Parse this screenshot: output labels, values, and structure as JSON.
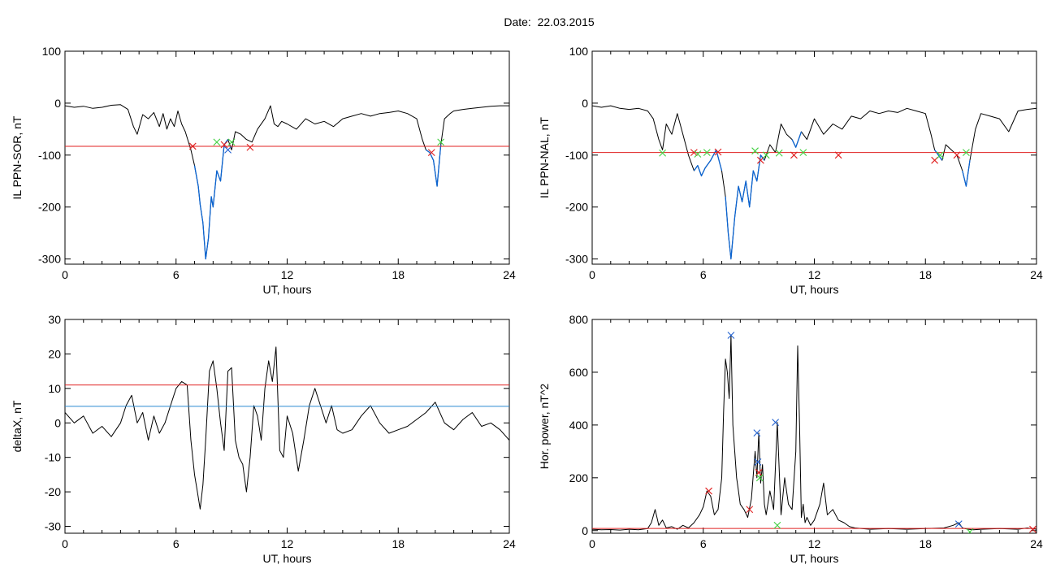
{
  "header": {
    "title": "Date:  22.03.2015"
  },
  "colors": {
    "trace": "#000000",
    "highlight": "#0a64d2",
    "threshold_red": "#e02020",
    "threshold_blue": "#2a8ad0",
    "marker_red": "#e02020",
    "marker_green": "#40d040",
    "marker_blue": "#2060d0"
  },
  "chart_data": [
    {
      "type": "line",
      "xlabel": "UT, hours",
      "ylabel": "IL PPN-SOR, nT",
      "xlim": [
        0,
        24
      ],
      "ylim": [
        -310,
        100
      ],
      "xticks": [
        0,
        6,
        12,
        18,
        24
      ],
      "yticks": [
        100,
        0,
        -100,
        -200,
        -300
      ],
      "series": [
        {
          "x": [
            0,
            0.5,
            1,
            1.5,
            2,
            2.5,
            3,
            3.4,
            3.7,
            3.9,
            4.2,
            4.5,
            4.8,
            5.1,
            5.3,
            5.5,
            5.7,
            5.9,
            6.1,
            6.3,
            6.5,
            6.8,
            7.0,
            7.2,
            7.3,
            7.45,
            7.6,
            7.75,
            7.9,
            8.0,
            8.2,
            8.4,
            8.6,
            8.8,
            9.0,
            9.2,
            9.5,
            9.8,
            10.1,
            10.4,
            10.8,
            11.1,
            11.3,
            11.5,
            11.7,
            12.0,
            12.5,
            13,
            13.5,
            14,
            14.5,
            15,
            15.5,
            16,
            16.5,
            17,
            17.5,
            18,
            18.5,
            19,
            19.3,
            19.5,
            19.7,
            19.9,
            20.1,
            20.3,
            20.5,
            20.8,
            21,
            21.5,
            22,
            22.5,
            23,
            23.5,
            24
          ],
          "y": [
            -5,
            -8,
            -6,
            -10,
            -8,
            -4,
            -3,
            -12,
            -45,
            -60,
            -22,
            -30,
            -18,
            -45,
            -20,
            -50,
            -30,
            -45,
            -15,
            -40,
            -55,
            -90,
            -120,
            -160,
            -195,
            -230,
            -300,
            -260,
            -180,
            -200,
            -130,
            -150,
            -80,
            -70,
            -90,
            -55,
            -60,
            -70,
            -75,
            -50,
            -30,
            -5,
            -40,
            -45,
            -35,
            -40,
            -50,
            -30,
            -40,
            -35,
            -45,
            -30,
            -25,
            -20,
            -25,
            -20,
            -18,
            -15,
            -20,
            -30,
            -70,
            -90,
            -95,
            -110,
            -160,
            -80,
            -30,
            -20,
            -15,
            -12,
            -10,
            -8,
            -6,
            -5,
            -5
          ]
        }
      ],
      "highlight_intervals": [
        [
          6.9,
          8.9
        ],
        [
          19.5,
          20.4
        ]
      ],
      "thresholds": [
        {
          "y": -83,
          "color": "#e02020"
        }
      ],
      "markers": [
        {
          "x": 6.9,
          "y": -83,
          "color": "#e02020"
        },
        {
          "x": 8.2,
          "y": -75,
          "color": "#40d040"
        },
        {
          "x": 8.6,
          "y": -80,
          "color": "#e02020"
        },
        {
          "x": 8.8,
          "y": -90,
          "color": "#2060d0"
        },
        {
          "x": 9.0,
          "y": -75,
          "color": "#40d040"
        },
        {
          "x": 10.0,
          "y": -85,
          "color": "#e02020"
        },
        {
          "x": 19.8,
          "y": -95,
          "color": "#e02020"
        },
        {
          "x": 20.3,
          "y": -75,
          "color": "#40d040"
        }
      ]
    },
    {
      "type": "line",
      "xlabel": "UT, hours",
      "ylabel": "IL PPN-NAL, nT",
      "xlim": [
        0,
        24
      ],
      "ylim": [
        -310,
        100
      ],
      "xticks": [
        0,
        6,
        12,
        18,
        24
      ],
      "yticks": [
        100,
        0,
        -100,
        -200,
        -300
      ],
      "series": [
        {
          "x": [
            0,
            0.5,
            1,
            1.5,
            2,
            2.5,
            3,
            3.3,
            3.6,
            3.8,
            4.0,
            4.3,
            4.6,
            4.9,
            5.2,
            5.5,
            5.7,
            5.9,
            6.1,
            6.4,
            6.7,
            7.0,
            7.2,
            7.35,
            7.5,
            7.7,
            7.9,
            8.1,
            8.3,
            8.5,
            8.7,
            8.9,
            9.1,
            9.3,
            9.6,
            9.9,
            10.2,
            10.5,
            10.8,
            11.0,
            11.3,
            11.6,
            12.0,
            12.5,
            13,
            13.5,
            14,
            14.5,
            15,
            15.5,
            16,
            16.5,
            17,
            17.5,
            18,
            18.3,
            18.5,
            18.7,
            18.9,
            19.1,
            19.4,
            19.7,
            20.0,
            20.2,
            20.4,
            20.7,
            21,
            21.5,
            22,
            22.5,
            23,
            23.5,
            24
          ],
          "y": [
            -5,
            -8,
            -5,
            -10,
            -12,
            -10,
            -15,
            -30,
            -70,
            -90,
            -40,
            -60,
            -20,
            -60,
            -100,
            -130,
            -120,
            -140,
            -125,
            -110,
            -90,
            -130,
            -180,
            -250,
            -300,
            -220,
            -160,
            -190,
            -150,
            -200,
            -130,
            -150,
            -100,
            -110,
            -80,
            -95,
            -40,
            -60,
            -70,
            -85,
            -55,
            -70,
            -30,
            -60,
            -40,
            -50,
            -25,
            -30,
            -15,
            -20,
            -15,
            -18,
            -10,
            -15,
            -20,
            -60,
            -90,
            -100,
            -110,
            -80,
            -90,
            -100,
            -130,
            -160,
            -110,
            -50,
            -20,
            -25,
            -30,
            -55,
            -15,
            -12,
            -10
          ]
        }
      ],
      "highlight_intervals": [
        [
          5.5,
          7.0
        ],
        [
          7.2,
          9.4
        ],
        [
          9.7,
          10.0
        ],
        [
          10.8,
          11.3
        ],
        [
          18.5,
          19.0
        ],
        [
          19.8,
          20.4
        ]
      ],
      "thresholds": [
        {
          "y": -95,
          "color": "#e02020"
        }
      ],
      "markers": [
        {
          "x": 3.8,
          "y": -96,
          "color": "#40d040"
        },
        {
          "x": 5.5,
          "y": -95,
          "color": "#e02020"
        },
        {
          "x": 5.7,
          "y": -98,
          "color": "#40d040"
        },
        {
          "x": 6.2,
          "y": -95,
          "color": "#40d040"
        },
        {
          "x": 6.8,
          "y": -94,
          "color": "#e02020"
        },
        {
          "x": 8.8,
          "y": -92,
          "color": "#40d040"
        },
        {
          "x": 9.1,
          "y": -110,
          "color": "#e02020"
        },
        {
          "x": 9.4,
          "y": -100,
          "color": "#40d040"
        },
        {
          "x": 10.1,
          "y": -96,
          "color": "#40d040"
        },
        {
          "x": 10.9,
          "y": -100,
          "color": "#e02020"
        },
        {
          "x": 11.4,
          "y": -95,
          "color": "#40d040"
        },
        {
          "x": 13.3,
          "y": -100,
          "color": "#e02020"
        },
        {
          "x": 18.5,
          "y": -110,
          "color": "#e02020"
        },
        {
          "x": 18.8,
          "y": -100,
          "color": "#40d040"
        },
        {
          "x": 19.7,
          "y": -100,
          "color": "#e02020"
        },
        {
          "x": 20.2,
          "y": -95,
          "color": "#40d040"
        }
      ]
    },
    {
      "type": "line",
      "xlabel": "UT, hours",
      "ylabel": "deltaX, nT",
      "xlim": [
        0,
        24
      ],
      "ylim": [
        -32,
        30
      ],
      "xticks": [
        0,
        6,
        12,
        18,
        24
      ],
      "yticks": [
        30,
        20,
        10,
        0,
        -10,
        -20,
        -30
      ],
      "series": [
        {
          "x": [
            0,
            0.5,
            1,
            1.5,
            2,
            2.5,
            3,
            3.3,
            3.6,
            3.9,
            4.2,
            4.5,
            4.8,
            5.1,
            5.4,
            5.7,
            6.0,
            6.3,
            6.6,
            6.8,
            7.0,
            7.15,
            7.3,
            7.45,
            7.6,
            7.8,
            8.0,
            8.2,
            8.4,
            8.6,
            8.8,
            9.0,
            9.2,
            9.4,
            9.6,
            9.8,
            10.0,
            10.2,
            10.4,
            10.6,
            10.8,
            11.0,
            11.2,
            11.4,
            11.6,
            11.8,
            12.0,
            12.3,
            12.6,
            12.9,
            13.2,
            13.5,
            13.8,
            14.1,
            14.4,
            14.7,
            15,
            15.5,
            16,
            16.5,
            17,
            17.5,
            18,
            18.5,
            19,
            19.5,
            20,
            20.5,
            21,
            21.5,
            22,
            22.5,
            23,
            23.5,
            24
          ],
          "y": [
            3,
            0,
            2,
            -3,
            -1,
            -4,
            0,
            5,
            8,
            0,
            3,
            -5,
            2,
            -3,
            0,
            5,
            10,
            12,
            11,
            -5,
            -15,
            -20,
            -25,
            -18,
            -5,
            15,
            18,
            10,
            0,
            -8,
            15,
            16,
            -5,
            -10,
            -12,
            -20,
            -10,
            5,
            2,
            -5,
            10,
            18,
            12,
            22,
            -8,
            -10,
            2,
            -3,
            -14,
            -5,
            5,
            10,
            5,
            0,
            5,
            -2,
            -3,
            -2,
            2,
            5,
            0,
            -3,
            -2,
            -1,
            1,
            3,
            6,
            0,
            -2,
            1,
            3,
            -1,
            0,
            -2,
            -5
          ]
        }
      ],
      "thresholds": [
        {
          "y": 11,
          "color": "#e02020"
        },
        {
          "y": 4.8,
          "color": "#2a8ad0"
        }
      ]
    },
    {
      "type": "line",
      "xlabel": "UT, hours",
      "ylabel": "Hor. power, nT^2",
      "xlim": [
        0,
        24
      ],
      "ylim": [
        -10,
        800
      ],
      "xticks": [
        0,
        6,
        12,
        18,
        24
      ],
      "yticks": [
        800,
        600,
        400,
        200,
        0
      ],
      "series": [
        {
          "x": [
            0,
            0.5,
            1,
            1.5,
            2,
            2.5,
            3,
            3.2,
            3.4,
            3.6,
            3.8,
            4.0,
            4.3,
            4.6,
            4.9,
            5.2,
            5.5,
            5.8,
            6.0,
            6.2,
            6.4,
            6.6,
            6.8,
            7.0,
            7.1,
            7.2,
            7.3,
            7.4,
            7.5,
            7.6,
            7.7,
            7.8,
            7.9,
            8.0,
            8.2,
            8.4,
            8.6,
            8.8,
            8.9,
            9.0,
            9.1,
            9.2,
            9.3,
            9.4,
            9.6,
            9.8,
            10.0,
            10.2,
            10.4,
            10.6,
            10.8,
            11.0,
            11.1,
            11.2,
            11.3,
            11.4,
            11.5,
            11.6,
            11.8,
            12.0,
            12.3,
            12.5,
            12.7,
            13.0,
            13.3,
            13.6,
            13.9,
            14.2,
            15,
            16,
            17,
            18,
            19,
            19.5,
            19.8,
            20.0,
            20.3,
            20.6,
            21,
            22,
            23,
            23.5,
            24
          ],
          "y": [
            5,
            3,
            4,
            2,
            5,
            3,
            8,
            30,
            80,
            20,
            40,
            10,
            15,
            5,
            20,
            10,
            30,
            60,
            90,
            150,
            130,
            60,
            80,
            200,
            450,
            650,
            600,
            500,
            740,
            400,
            300,
            200,
            150,
            100,
            80,
            50,
            120,
            300,
            200,
            370,
            180,
            250,
            100,
            60,
            150,
            80,
            410,
            60,
            200,
            100,
            80,
            300,
            700,
            400,
            50,
            100,
            30,
            50,
            20,
            40,
            100,
            180,
            60,
            80,
            40,
            30,
            15,
            10,
            5,
            8,
            5,
            8,
            10,
            20,
            30,
            10,
            5,
            3,
            5,
            8,
            5,
            10,
            5
          ]
        }
      ],
      "thresholds": [
        {
          "y": 8,
          "color": "#e02020"
        }
      ],
      "markers": [
        {
          "x": 6.3,
          "y": 150,
          "color": "#e02020"
        },
        {
          "x": 7.5,
          "y": 740,
          "color": "#2060d0"
        },
        {
          "x": 8.5,
          "y": 80,
          "color": "#e02020"
        },
        {
          "x": 8.9,
          "y": 370,
          "color": "#2060d0"
        },
        {
          "x": 8.95,
          "y": 260,
          "color": "#2060d0"
        },
        {
          "x": 9.0,
          "y": 220,
          "color": "#e02020"
        },
        {
          "x": 9.05,
          "y": 200,
          "color": "#40d040"
        },
        {
          "x": 9.9,
          "y": 410,
          "color": "#2060d0"
        },
        {
          "x": 10.0,
          "y": 20,
          "color": "#40d040"
        },
        {
          "x": 19.8,
          "y": 25,
          "color": "#2060d0"
        },
        {
          "x": 20.4,
          "y": -5,
          "color": "#40d040"
        },
        {
          "x": 23.8,
          "y": 5,
          "color": "#e02020"
        }
      ]
    }
  ]
}
